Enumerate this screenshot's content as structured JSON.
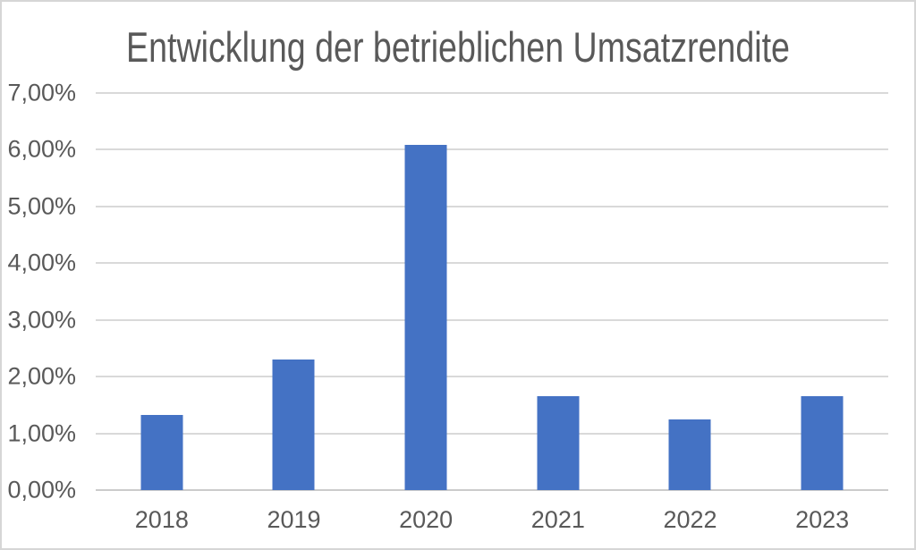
{
  "page": {
    "background": "#ffffff",
    "border_color": "#d6d6d6"
  },
  "chart_data": {
    "type": "bar",
    "title": "Entwicklung der betrieblichen Umsatzrendite",
    "categories": [
      "2018",
      "2019",
      "2020",
      "2021",
      "2022",
      "2023"
    ],
    "values": [
      1.32,
      2.3,
      6.08,
      1.66,
      1.25,
      1.66
    ],
    "unit": "%",
    "number_format": "de-DE",
    "y_ticks": [
      "0,00%",
      "1,00%",
      "2,00%",
      "3,00%",
      "4,00%",
      "5,00%",
      "6,00%",
      "7,00%"
    ],
    "y_tick_values": [
      0,
      1,
      2,
      3,
      4,
      5,
      6,
      7
    ],
    "ylim": [
      0,
      7
    ],
    "xlabel": "",
    "ylabel": "",
    "grid": true,
    "legend": false,
    "legend_position": "none",
    "bar_color": "#4472c4",
    "gridline_color": "#d9d9d9",
    "axis_line_color": "#cbcbcb",
    "text_color": "#595959",
    "title_color": "#595959"
  }
}
